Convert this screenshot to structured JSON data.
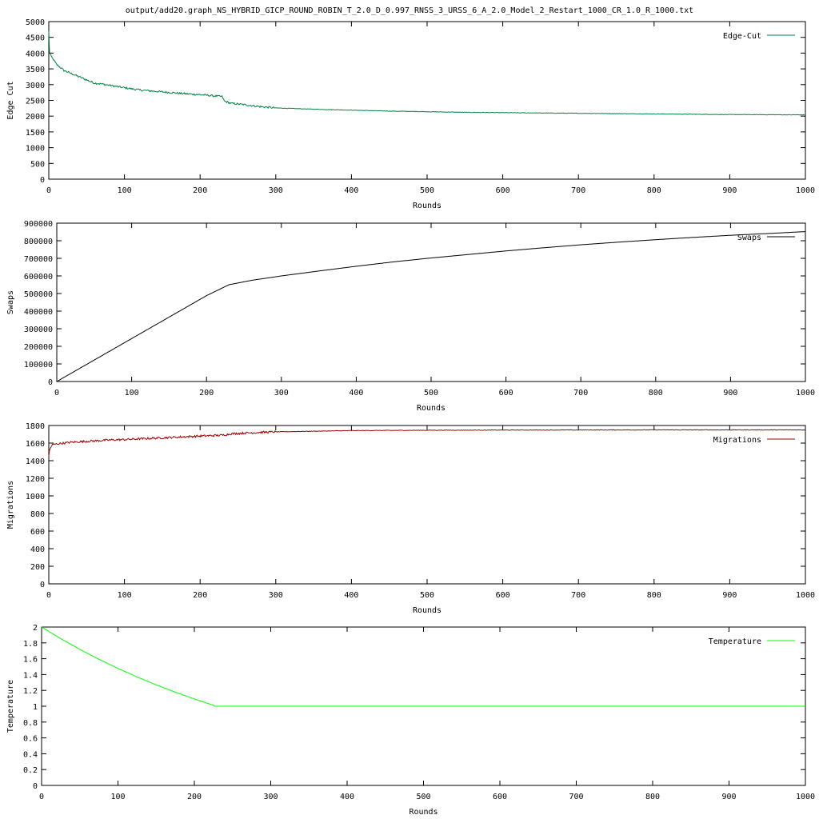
{
  "figure_title": "output/add20.graph_NS_HYBRID_GICP_ROUND_ROBIN_T_2.0_D_0.997_RNSS_3_URSS_6_A_2.0_Model_2_Restart_1000_CR_1.0_R_1000.txt",
  "chart_data": [
    {
      "type": "line",
      "title": "",
      "xlabel": "Rounds",
      "ylabel": "Edge Cut",
      "xlim": [
        0,
        1000
      ],
      "ylim": [
        0,
        5000
      ],
      "xticks": [
        0,
        100,
        200,
        300,
        400,
        500,
        600,
        700,
        800,
        900,
        1000
      ],
      "yticks": [
        0,
        500,
        1000,
        1500,
        2000,
        2500,
        3000,
        3500,
        4000,
        4500,
        5000
      ],
      "legend_position": "top-right",
      "noise": 30,
      "series": [
        {
          "name": "Edge-Cut",
          "color": "#008040",
          "x": [
            0,
            1,
            3,
            6,
            10,
            15,
            20,
            30,
            40,
            50,
            60,
            70,
            80,
            100,
            120,
            150,
            180,
            200,
            220,
            229,
            232,
            240,
            260,
            280,
            300,
            350,
            400,
            450,
            500,
            550,
            600,
            700,
            800,
            900,
            1000
          ],
          "y": [
            4700,
            4050,
            3900,
            3800,
            3650,
            3550,
            3450,
            3350,
            3250,
            3150,
            3050,
            3020,
            2980,
            2900,
            2830,
            2770,
            2710,
            2680,
            2640,
            2620,
            2480,
            2410,
            2360,
            2300,
            2260,
            2220,
            2190,
            2160,
            2140,
            2120,
            2110,
            2090,
            2070,
            2050,
            2040
          ]
        }
      ]
    },
    {
      "type": "line",
      "title": "",
      "xlabel": "Rounds",
      "ylabel": "Swaps",
      "xlim": [
        0,
        1000
      ],
      "ylim": [
        0,
        900000
      ],
      "xticks": [
        0,
        100,
        200,
        300,
        400,
        500,
        600,
        700,
        800,
        900,
        1000
      ],
      "yticks": [
        0,
        100000,
        200000,
        300000,
        400000,
        500000,
        600000,
        700000,
        800000,
        900000
      ],
      "legend_position": "top-right",
      "noise": 0,
      "series": [
        {
          "name": "Swaps",
          "color": "#000000",
          "x": [
            0,
            50,
            100,
            150,
            200,
            230,
            260,
            300,
            350,
            400,
            450,
            500,
            550,
            600,
            650,
            700,
            750,
            800,
            850,
            900,
            950,
            1000
          ],
          "y": [
            0,
            122000,
            244000,
            366000,
            488000,
            550000,
            575000,
            600000,
            628000,
            655000,
            680000,
            702000,
            722000,
            742000,
            760000,
            777000,
            792000,
            806000,
            819000,
            831000,
            841000,
            852000
          ]
        }
      ]
    },
    {
      "type": "line",
      "title": "",
      "xlabel": "Rounds",
      "ylabel": "Migrations",
      "xlim": [
        0,
        1000
      ],
      "ylim": [
        0,
        1800
      ],
      "xticks": [
        0,
        100,
        200,
        300,
        400,
        500,
        600,
        700,
        800,
        900,
        1000
      ],
      "yticks": [
        0,
        200,
        400,
        600,
        800,
        1000,
        1200,
        1400,
        1600,
        1800
      ],
      "legend_position": "top-right",
      "noise": 12,
      "series": [
        {
          "name": "Migrations",
          "color": "#a00000",
          "x": [
            0,
            1,
            3,
            5,
            10,
            20,
            30,
            50,
            80,
            100,
            150,
            200,
            230,
            240,
            260,
            280,
            300,
            350,
            400,
            500,
            600,
            700,
            800,
            900,
            1000
          ],
          "y": [
            1440,
            1520,
            1560,
            1580,
            1590,
            1600,
            1610,
            1620,
            1635,
            1640,
            1660,
            1680,
            1690,
            1705,
            1715,
            1722,
            1728,
            1735,
            1742,
            1746,
            1748,
            1749,
            1750,
            1750,
            1750
          ]
        }
      ]
    },
    {
      "type": "line",
      "title": "",
      "xlabel": "Rounds",
      "ylabel": "Temperature",
      "xlim": [
        0,
        1000
      ],
      "ylim": [
        0,
        2
      ],
      "xticks": [
        0,
        100,
        200,
        300,
        400,
        500,
        600,
        700,
        800,
        900,
        1000
      ],
      "yticks": [
        0,
        0.2,
        0.4,
        0.6,
        0.8,
        1,
        1.2,
        1.4,
        1.6,
        1.8,
        2
      ],
      "legend_position": "top-right",
      "noise": 0,
      "series": [
        {
          "name": "Temperature",
          "color": "#00ff00",
          "x": [
            0,
            25,
            50,
            75,
            100,
            125,
            150,
            175,
            200,
            225,
            226,
            300,
            400,
            500,
            600,
            700,
            800,
            900,
            1000
          ],
          "y": [
            2.0,
            1.854,
            1.719,
            1.593,
            1.478,
            1.37,
            1.27,
            1.178,
            1.092,
            1.012,
            1.0,
            1.0,
            1.0,
            1.0,
            1.0,
            1.0,
            1.0,
            1.0,
            1.0
          ]
        }
      ]
    }
  ]
}
